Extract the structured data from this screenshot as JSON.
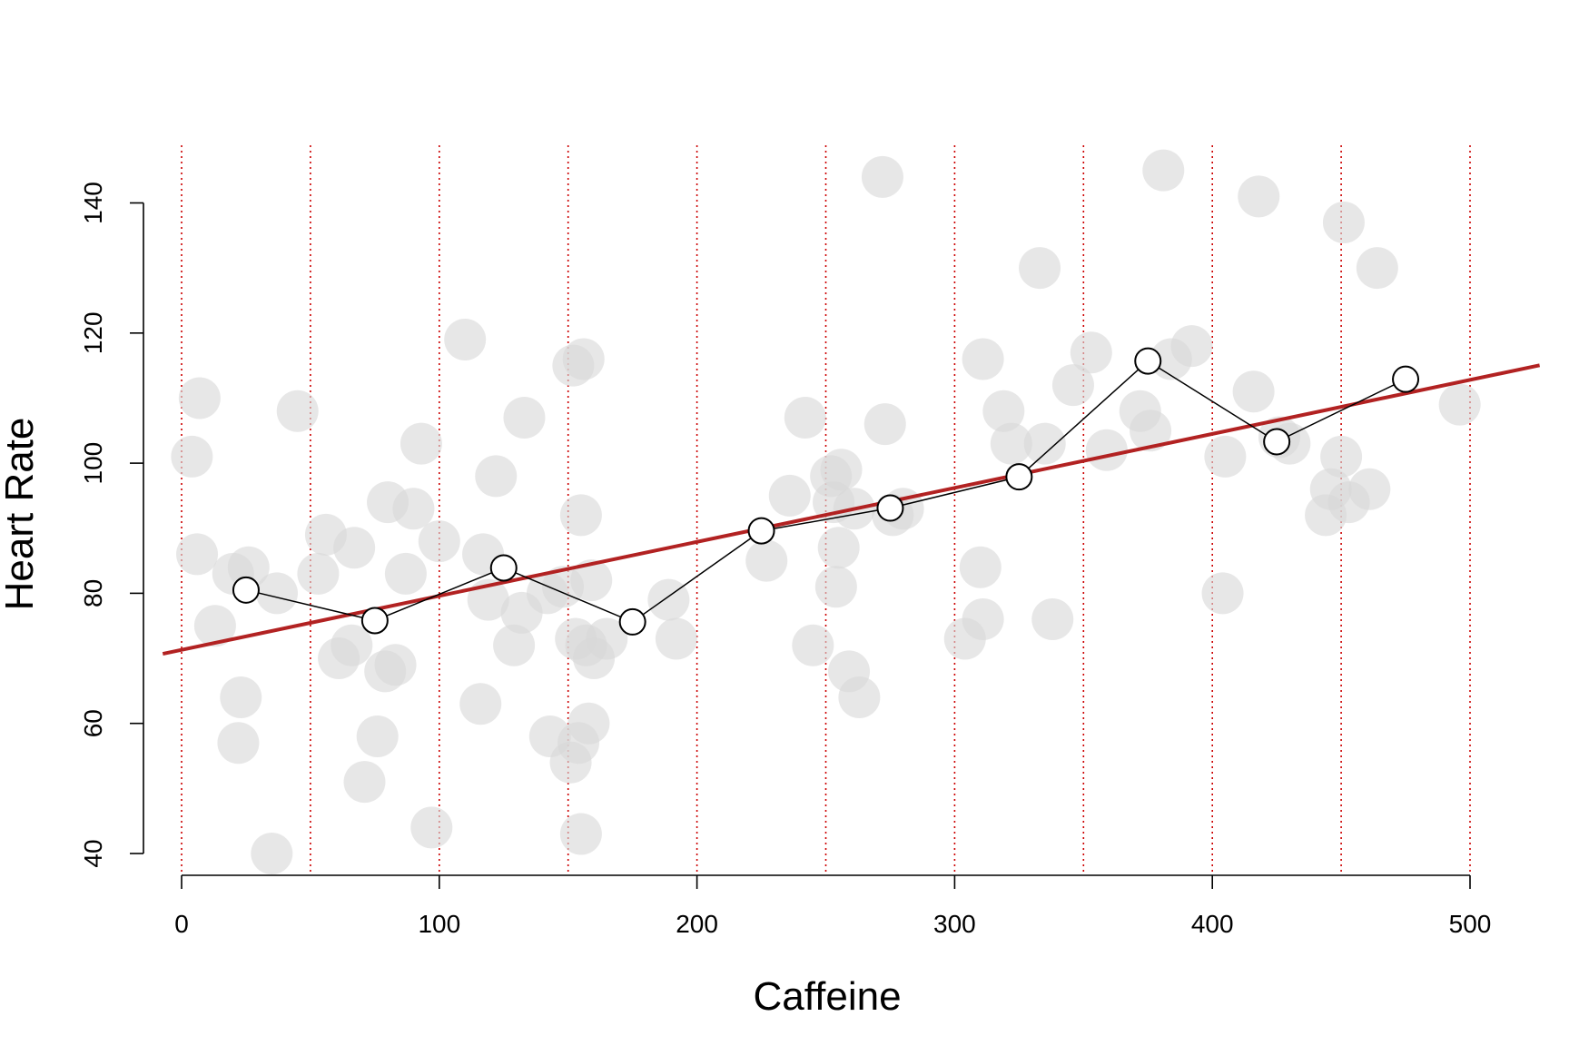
{
  "chart_data": {
    "type": "scatter",
    "title": "",
    "xlabel": "Caffeine",
    "ylabel": "Heart Rate",
    "xlim": [
      0,
      525
    ],
    "ylim": [
      40,
      145
    ],
    "x_ticks": [
      0,
      100,
      200,
      300,
      400,
      500
    ],
    "y_ticks": [
      40,
      60,
      80,
      100,
      120,
      140
    ],
    "bin_edges": [
      0,
      50,
      100,
      150,
      200,
      250,
      300,
      350,
      400,
      450,
      500
    ],
    "colors": {
      "points": "#d9d9d9",
      "bin_lines": "#cc0000",
      "regression": "#b22222",
      "bin_means": "#000000"
    },
    "grid": false,
    "legend": "none",
    "points": [
      [
        4,
        101
      ],
      [
        6,
        86
      ],
      [
        7,
        110
      ],
      [
        13,
        75
      ],
      [
        20,
        83
      ],
      [
        22,
        57
      ],
      [
        23,
        64
      ],
      [
        26,
        84
      ],
      [
        35,
        40
      ],
      [
        37,
        80
      ],
      [
        45,
        108
      ],
      [
        53,
        83
      ],
      [
        56,
        89
      ],
      [
        61,
        70
      ],
      [
        66,
        72
      ],
      [
        67,
        87
      ],
      [
        71,
        51
      ],
      [
        76,
        58
      ],
      [
        79,
        68
      ],
      [
        80,
        94
      ],
      [
        83,
        69
      ],
      [
        87,
        83
      ],
      [
        90,
        93
      ],
      [
        93,
        103
      ],
      [
        97,
        44
      ],
      [
        100,
        88
      ],
      [
        110,
        119
      ],
      [
        116,
        63
      ],
      [
        117,
        86
      ],
      [
        119,
        79
      ],
      [
        122,
        98
      ],
      [
        129,
        72
      ],
      [
        132,
        77
      ],
      [
        133,
        107
      ],
      [
        142,
        80
      ],
      [
        143,
        58
      ],
      [
        148,
        81
      ],
      [
        151,
        54
      ],
      [
        152,
        115
      ],
      [
        153,
        73
      ],
      [
        154,
        57
      ],
      [
        155,
        43
      ],
      [
        155,
        92
      ],
      [
        156,
        116
      ],
      [
        157,
        72
      ],
      [
        158,
        60
      ],
      [
        159,
        82
      ],
      [
        160,
        70
      ],
      [
        165,
        73
      ],
      [
        189,
        79
      ],
      [
        192,
        73
      ],
      [
        227,
        85
      ],
      [
        236,
        95
      ],
      [
        242,
        107
      ],
      [
        245,
        72
      ],
      [
        252,
        98
      ],
      [
        253,
        94
      ],
      [
        254,
        81
      ],
      [
        255,
        87
      ],
      [
        256,
        99
      ],
      [
        259,
        68
      ],
      [
        261,
        93
      ],
      [
        263,
        64
      ],
      [
        272,
        144
      ],
      [
        273,
        106
      ],
      [
        276,
        92
      ],
      [
        280,
        93
      ],
      [
        304,
        73
      ],
      [
        310,
        84
      ],
      [
        311,
        116
      ],
      [
        311,
        76
      ],
      [
        319,
        108
      ],
      [
        322,
        103
      ],
      [
        333,
        130
      ],
      [
        335,
        103
      ],
      [
        338,
        76
      ],
      [
        346,
        112
      ],
      [
        353,
        117
      ],
      [
        359,
        102
      ],
      [
        372,
        108
      ],
      [
        376,
        105
      ],
      [
        381,
        145
      ],
      [
        384,
        116
      ],
      [
        392,
        118
      ],
      [
        404,
        80
      ],
      [
        405,
        101
      ],
      [
        416,
        111
      ],
      [
        418,
        141
      ],
      [
        426,
        104
      ],
      [
        430,
        103
      ],
      [
        444,
        92
      ],
      [
        446,
        96
      ],
      [
        451,
        137
      ],
      [
        450,
        101
      ],
      [
        453,
        94
      ],
      [
        461,
        96
      ],
      [
        464,
        130
      ],
      [
        496,
        109
      ]
    ],
    "bin_means": [
      {
        "x": 25,
        "y": 80.5
      },
      {
        "x": 75,
        "y": 75.8
      },
      {
        "x": 125,
        "y": 83.9
      },
      {
        "x": 175,
        "y": 75.6
      },
      {
        "x": 225,
        "y": 89.6
      },
      {
        "x": 275,
        "y": 93.1
      },
      {
        "x": 325,
        "y": 97.9
      },
      {
        "x": 375,
        "y": 115.7
      },
      {
        "x": 425,
        "y": 103.3
      },
      {
        "x": 475,
        "y": 112.9
      }
    ],
    "regression": {
      "intercept": 71.3,
      "slope": 0.083
    }
  }
}
